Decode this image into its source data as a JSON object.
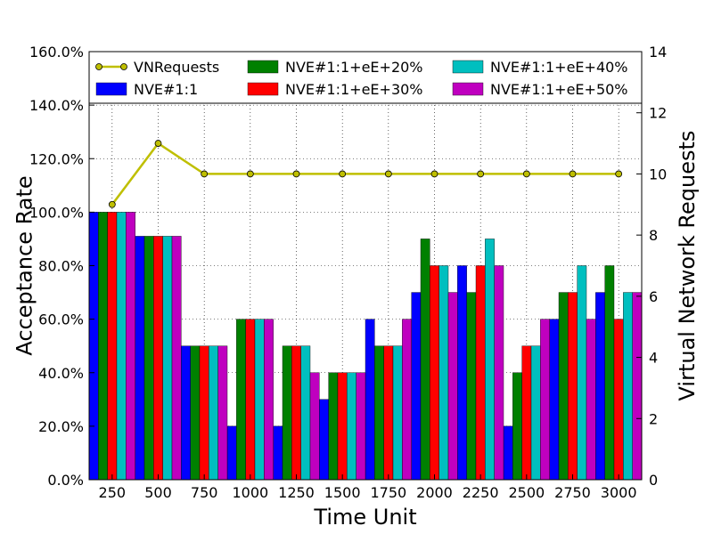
{
  "chart_data": {
    "type": "bar",
    "xlabel": "Time Unit",
    "ylabel_left": "Acceptance Rate",
    "ylabel_right": "Virtual Network Requests",
    "categories": [
      "250",
      "500",
      "750",
      "1000",
      "1250",
      "1500",
      "1750",
      "2000",
      "2250",
      "2500",
      "2750",
      "3000"
    ],
    "ylim_left": [
      0,
      160
    ],
    "yticks_left": [
      "0.0%",
      "20.0%",
      "40.0%",
      "60.0%",
      "80.0%",
      "100.0%",
      "120.0%",
      "140.0%",
      "160.0%"
    ],
    "ylim_right": [
      0,
      14
    ],
    "yticks_right": [
      "0",
      "2",
      "4",
      "6",
      "8",
      "10",
      "12",
      "14"
    ],
    "grid": true,
    "legend_position": "top",
    "bar_series": [
      {
        "name": "NVE#1:1",
        "color": "#0000ff",
        "values": [
          100,
          91,
          50,
          20,
          20,
          30,
          60,
          70,
          80,
          20,
          60,
          70
        ]
      },
      {
        "name": "NVE#1:1+eE+20%",
        "color": "#008000",
        "values": [
          100,
          91,
          50,
          60,
          50,
          40,
          50,
          90,
          70,
          40,
          70,
          80
        ]
      },
      {
        "name": "NVE#1:1+eE+30%",
        "color": "#ff0000",
        "values": [
          100,
          91,
          50,
          60,
          50,
          40,
          50,
          80,
          80,
          50,
          70,
          60
        ]
      },
      {
        "name": "NVE#1:1+eE+40%",
        "color": "#00bfbf",
        "values": [
          100,
          91,
          50,
          60,
          50,
          40,
          50,
          80,
          90,
          50,
          80,
          70
        ]
      },
      {
        "name": "NVE#1:1+eE+50%",
        "color": "#bf00bf",
        "values": [
          100,
          91,
          50,
          60,
          40,
          40,
          60,
          70,
          80,
          60,
          60,
          70
        ]
      }
    ],
    "line_series": {
      "name": "VNRequests",
      "axis": "right",
      "color": "#bfbf00",
      "values": [
        9,
        11,
        10,
        10,
        10,
        10,
        10,
        10,
        10,
        10,
        10,
        10
      ]
    }
  }
}
